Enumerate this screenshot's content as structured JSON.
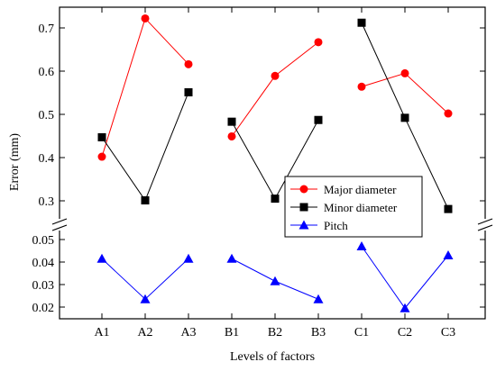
{
  "chart_data": {
    "type": "line",
    "xlabel": "Levels of factors",
    "ylabel": "Error (mm)",
    "categories": [
      "A1",
      "A2",
      "A3",
      "B1",
      "B2",
      "B3",
      "C1",
      "C2",
      "C3"
    ],
    "groups": [
      [
        "A1",
        "A2",
        "A3"
      ],
      [
        "B1",
        "B2",
        "B3"
      ],
      [
        "C1",
        "C2",
        "C3"
      ]
    ],
    "axis_break": true,
    "upper_panel": {
      "ylim": [
        0.25,
        0.75
      ],
      "yticks": [
        0.3,
        0.4,
        0.5,
        0.6,
        0.7
      ],
      "ytick_labels": [
        "0.3",
        "0.4",
        "0.5",
        "0.6",
        "0.7"
      ]
    },
    "lower_panel": {
      "ylim": [
        0.015,
        0.055
      ],
      "yticks": [
        0.02,
        0.03,
        0.04,
        0.05
      ],
      "ytick_labels": [
        "0.02",
        "0.03",
        "0.04",
        "0.05"
      ]
    },
    "legend_position": "lower-right of upper panel",
    "series": [
      {
        "name": "Major diameter",
        "panel": "upper",
        "color": "#ff0000",
        "marker": "circle",
        "values": [
          0.402,
          0.722,
          0.616,
          0.449,
          0.589,
          0.667,
          0.564,
          0.595,
          0.502
        ]
      },
      {
        "name": "Minor diameter",
        "panel": "upper",
        "color": "#000000",
        "marker": "square",
        "values": [
          0.447,
          0.301,
          0.551,
          0.483,
          0.305,
          0.487,
          0.712,
          0.492,
          0.281
        ]
      },
      {
        "name": "Pitch",
        "panel": "lower",
        "color": "#0000ff",
        "marker": "triangle",
        "values": [
          0.0415,
          0.0235,
          0.0415,
          0.0415,
          0.0315,
          0.0235,
          0.047,
          0.0195,
          0.043
        ]
      }
    ]
  }
}
